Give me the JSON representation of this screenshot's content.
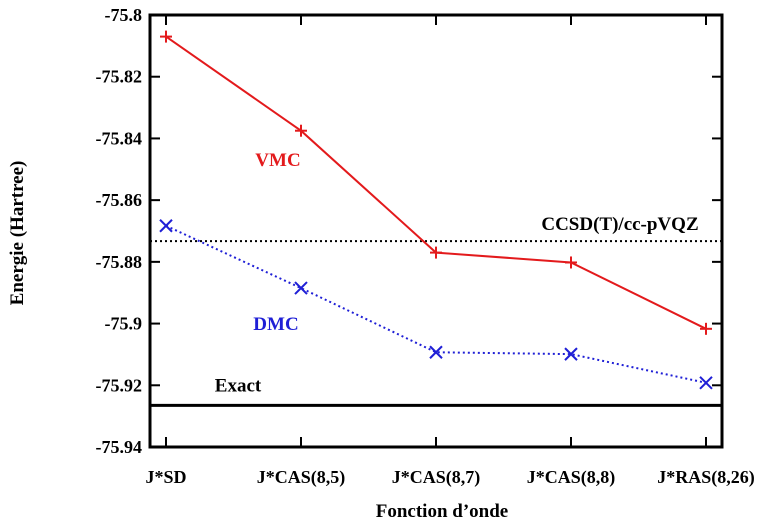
{
  "chart_data": {
    "type": "line",
    "title": "",
    "xlabel": "Fonction d’onde",
    "ylabel": "Energie (Hartree)",
    "categories": [
      "J*SD",
      "J*CAS(8,5)",
      "J*CAS(8,7)",
      "J*CAS(8,8)",
      "J*RAS(8,26)"
    ],
    "ylim": [
      -75.94,
      -75.8
    ],
    "yticks": [
      "-75.8",
      "-75.82",
      "-75.84",
      "-75.86",
      "-75.88",
      "-75.9",
      "-75.92",
      "-75.94"
    ],
    "grid": false,
    "series": [
      {
        "name": "VMC",
        "color": "#e31a1c",
        "style": "solid",
        "marker": "plus",
        "values": [
          -75.807,
          -75.8375,
          -75.877,
          -75.8802,
          -75.9017
        ]
      },
      {
        "name": "DMC",
        "color": "#1f1fd6",
        "style": "dotted",
        "marker": "cross",
        "values": [
          -75.8683,
          -75.8885,
          -75.9093,
          -75.9099,
          -75.9192
        ]
      }
    ],
    "reference_lines": [
      {
        "label": "CCSD(T)/cc-pVQZ",
        "value": -75.8733,
        "style": "dotted",
        "color": "#000000"
      },
      {
        "label": "Exact",
        "value": -75.9265,
        "style": "solid",
        "color": "#000000"
      }
    ]
  }
}
